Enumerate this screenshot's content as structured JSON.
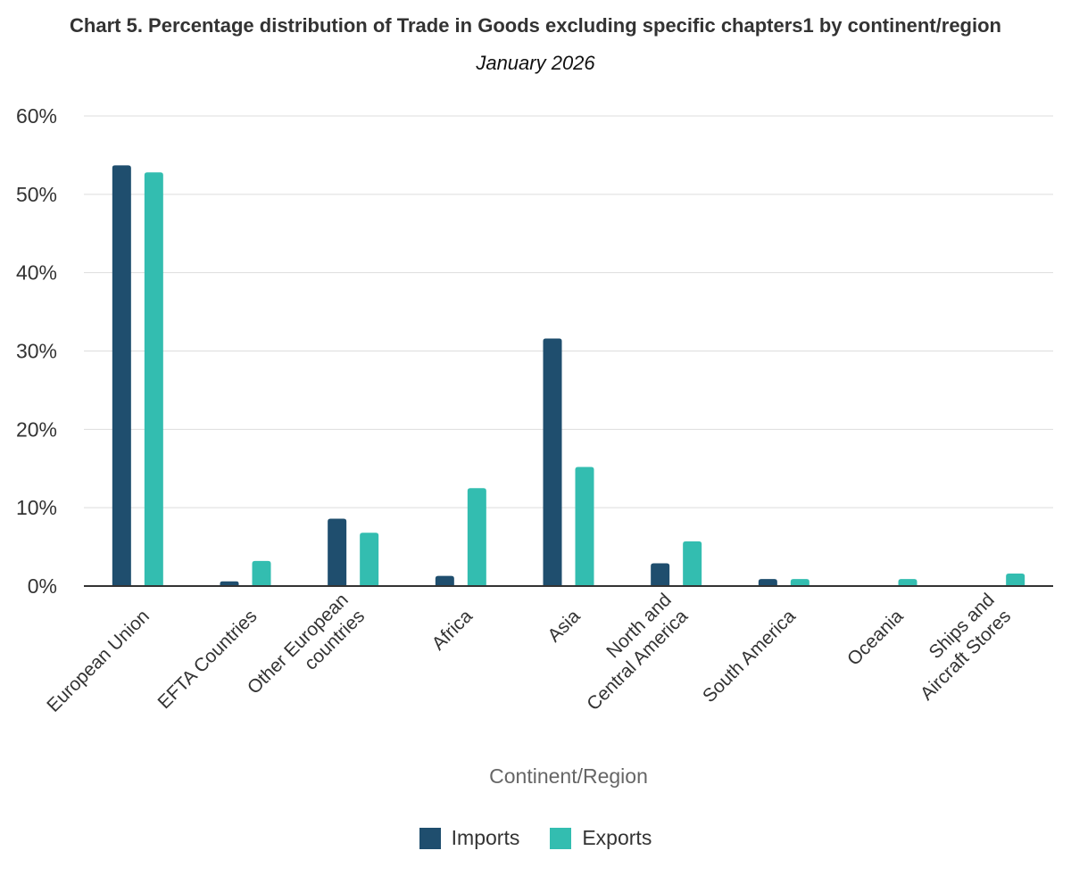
{
  "chart_data": {
    "type": "bar",
    "title": "Chart 5. Percentage distribution of Trade in Goods excluding specific chapters1 by continent/region",
    "subtitle": "January 2026",
    "xlabel": "Continent/Region",
    "ylabel": "",
    "ylim": [
      0,
      60
    ],
    "yticks": [
      0,
      10,
      20,
      30,
      40,
      50,
      60
    ],
    "ytick_labels": [
      "0%",
      "10%",
      "20%",
      "30%",
      "40%",
      "50%",
      "60%"
    ],
    "grid": true,
    "legend_position": "bottom",
    "categories": [
      [
        "European Union"
      ],
      [
        "EFTA Countries"
      ],
      [
        "Other European",
        "countries"
      ],
      [
        "Africa"
      ],
      [
        "Asia"
      ],
      [
        "North and",
        "Central America"
      ],
      [
        "South America"
      ],
      [
        "Oceania"
      ],
      [
        "Ships and",
        "Aircraft Stores"
      ]
    ],
    "series": [
      {
        "name": "Imports",
        "color": "#1f4e6e",
        "values": [
          53.7,
          0.6,
          8.6,
          1.3,
          31.6,
          2.9,
          0.9,
          0.0,
          0.0
        ]
      },
      {
        "name": "Exports",
        "color": "#33bdb0",
        "values": [
          52.8,
          3.2,
          6.8,
          12.5,
          15.2,
          5.7,
          0.9,
          0.9,
          1.6
        ]
      }
    ]
  }
}
